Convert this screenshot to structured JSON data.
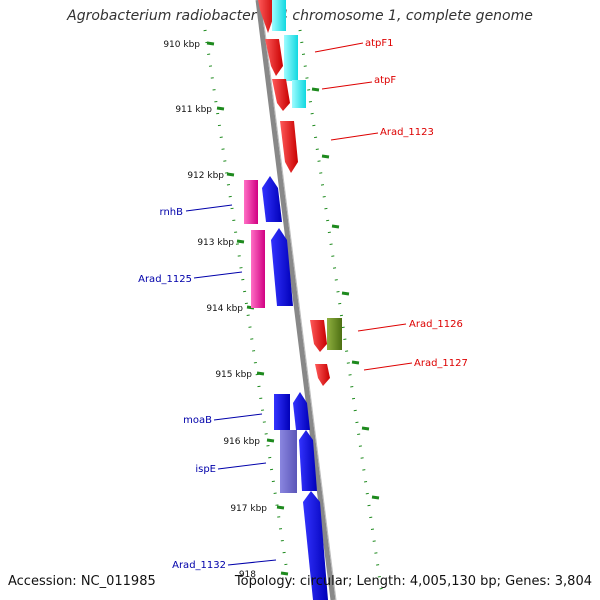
{
  "title": "Agrobacterium radiobacter K84 chromosome 1, complete genome",
  "footer": {
    "accession": "Accession: NC_011985",
    "stats": "Topology: circular; Length: 4,005,130 bp; Genes: 3,804"
  },
  "ticks": [
    "910 kbp",
    "911 kbp",
    "912 kbp",
    "913 kbp",
    "914 kbp",
    "915 kbp",
    "916 kbp",
    "917 kbp",
    "918"
  ],
  "genes_right": [
    {
      "name": "atpF1",
      "color": "#dd0000"
    },
    {
      "name": "atpF",
      "color": "#dd0000"
    },
    {
      "name": "Arad_1123",
      "color": "#dd0000"
    },
    {
      "name": "Arad_1126",
      "color": "#dd0000"
    },
    {
      "name": "Arad_1127",
      "color": "#dd0000"
    }
  ],
  "genes_left": [
    {
      "name": "rnhB",
      "color": "#0000aa"
    },
    {
      "name": "Arad_1125",
      "color": "#0000aa"
    },
    {
      "name": "moaB",
      "color": "#0000aa"
    },
    {
      "name": "ispE",
      "color": "#0000aa"
    },
    {
      "name": "Arad_1132",
      "color": "#0000aa"
    }
  ]
}
